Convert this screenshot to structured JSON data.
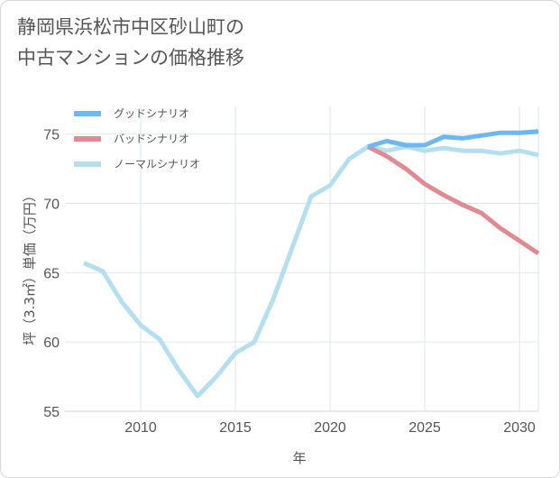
{
  "title_lines": [
    "静岡県浜松市中区砂山町の",
    "中古マンションの価格推移"
  ],
  "chart_data": {
    "type": "line",
    "title": "静岡県浜松市中区砂山町の中古マンションの価格推移",
    "xlabel": "年",
    "ylabel": "坪（3.3㎡）単価（万円）",
    "xlim": [
      2006,
      2031
    ],
    "ylim": [
      55,
      77
    ],
    "x_ticks": [
      2010,
      2015,
      2020,
      2025,
      2030
    ],
    "y_ticks": [
      55,
      60,
      65,
      70,
      75
    ],
    "grid": true,
    "legend_position": "top-left",
    "series": [
      {
        "name": "グッドシナリオ",
        "color": "#6db8ef",
        "x": [
          2022,
          2023,
          2024,
          2025,
          2026,
          2027,
          2028,
          2029,
          2030,
          2031
        ],
        "y": [
          74.1,
          74.5,
          74.2,
          74.2,
          74.8,
          74.7,
          74.9,
          75.1,
          75.1,
          75.2
        ]
      },
      {
        "name": "バッドシナリオ",
        "color": "#e08a91",
        "x": [
          2022,
          2023,
          2024,
          2025,
          2026,
          2027,
          2028,
          2029,
          2030,
          2031
        ],
        "y": [
          74.1,
          73.4,
          72.5,
          71.4,
          70.6,
          69.9,
          69.3,
          68.2,
          67.3,
          66.4
        ]
      },
      {
        "name": "ノーマルシナリオ",
        "color": "#b5dfef",
        "x": [
          2007,
          2008,
          2009,
          2010,
          2011,
          2012,
          2013,
          2014,
          2015,
          2016,
          2017,
          2018,
          2019,
          2020,
          2021,
          2022,
          2023,
          2024,
          2025,
          2026,
          2027,
          2028,
          2029,
          2030,
          2031
        ],
        "y": [
          65.7,
          65.1,
          62.9,
          61.2,
          60.2,
          58.0,
          56.1,
          57.5,
          59.2,
          60.0,
          63.1,
          66.8,
          70.5,
          71.3,
          73.2,
          74.1,
          73.8,
          74.1,
          73.8,
          74.0,
          73.8,
          73.8,
          73.6,
          73.8,
          73.5
        ]
      }
    ]
  }
}
